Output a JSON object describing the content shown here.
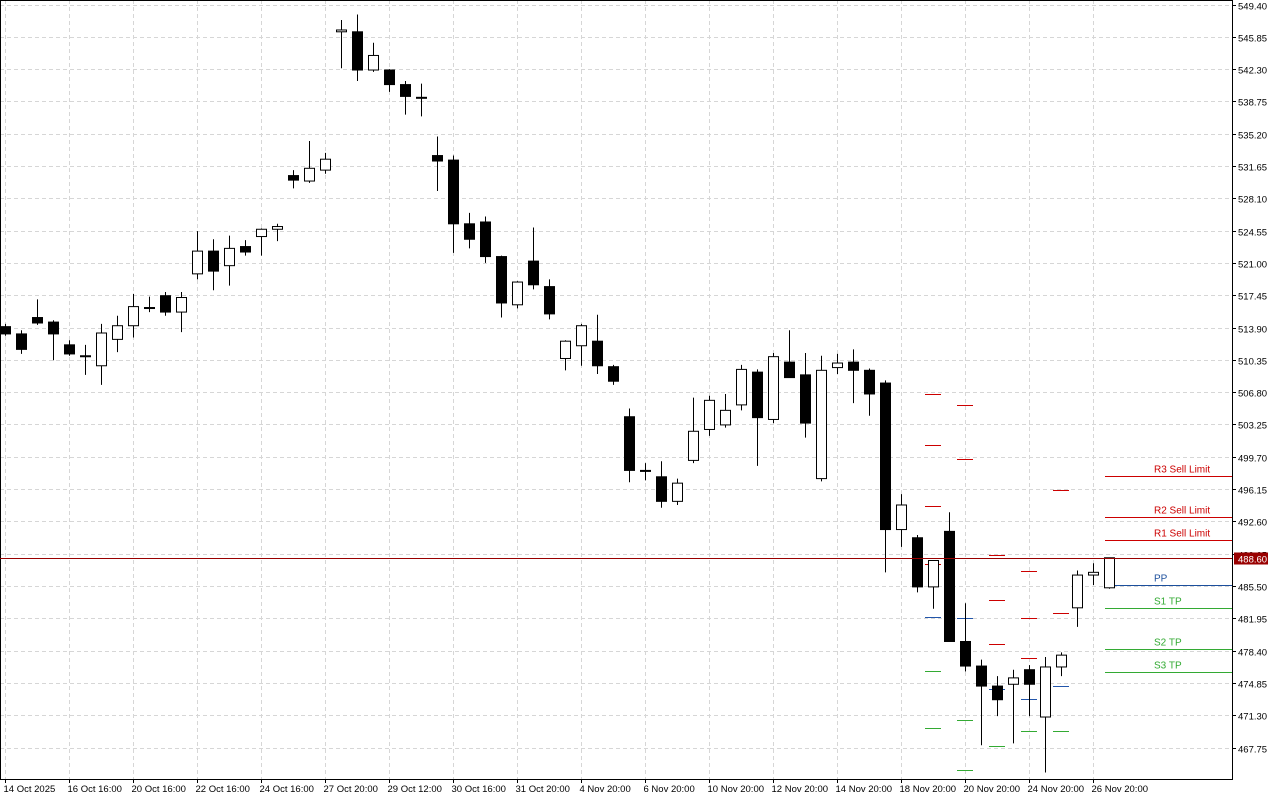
{
  "chart_data": {
    "type": "candlestick",
    "ylim": [
      464.0,
      549.4
    ],
    "grid": true,
    "y_ticks": [
      "549.40",
      "545.85",
      "542.30",
      "538.75",
      "535.20",
      "531.65",
      "528.10",
      "524.55",
      "521.00",
      "517.45",
      "513.90",
      "510.35",
      "506.80",
      "503.25",
      "499.70",
      "496.15",
      "492.60",
      "489.05",
      "485.50",
      "481.95",
      "478.40",
      "474.85",
      "471.30",
      "467.75"
    ],
    "x_labels": [
      {
        "index": 0,
        "label": "14 Oct 2025"
      },
      {
        "index": 4,
        "label": "16 Oct 16:00"
      },
      {
        "index": 8,
        "label": "20 Oct 16:00"
      },
      {
        "index": 12,
        "label": "22 Oct 16:00"
      },
      {
        "index": 16,
        "label": "24 Oct 16:00"
      },
      {
        "index": 20,
        "label": "27 Oct 20:00"
      },
      {
        "index": 24,
        "label": "29 Oct 12:00"
      },
      {
        "index": 28,
        "label": "30 Oct 16:00"
      },
      {
        "index": 32,
        "label": "31 Oct 20:00"
      },
      {
        "index": 36,
        "label": "4 Nov 20:00"
      },
      {
        "index": 40,
        "label": "6 Nov 20:00"
      },
      {
        "index": 44,
        "label": "10 Nov 20:00"
      },
      {
        "index": 48,
        "label": "12 Nov 20:00"
      },
      {
        "index": 52,
        "label": "14 Nov 20:00"
      },
      {
        "index": 56,
        "label": "18 Nov 20:00"
      },
      {
        "index": 60,
        "label": "20 Nov 20:00"
      },
      {
        "index": 64,
        "label": "24 Nov 20:00"
      },
      {
        "index": 68,
        "label": "26 Nov 20:00"
      }
    ],
    "candles": [
      {
        "o": 514.0,
        "h": 514.3,
        "l": 513.0,
        "c": 513.2
      },
      {
        "o": 513.2,
        "h": 513.6,
        "l": 511.0,
        "c": 511.5
      },
      {
        "o": 515.0,
        "h": 517.0,
        "l": 514.2,
        "c": 514.4
      },
      {
        "o": 514.5,
        "h": 514.7,
        "l": 510.3,
        "c": 513.2
      },
      {
        "o": 512.0,
        "h": 512.5,
        "l": 510.8,
        "c": 511.0
      },
      {
        "o": 510.8,
        "h": 512.0,
        "l": 508.7,
        "c": 510.7
      },
      {
        "o": 509.7,
        "h": 514.3,
        "l": 507.6,
        "c": 513.3
      },
      {
        "o": 512.6,
        "h": 515.2,
        "l": 511.2,
        "c": 514.1
      },
      {
        "o": 514.1,
        "h": 517.6,
        "l": 512.8,
        "c": 516.2
      },
      {
        "o": 516.0,
        "h": 517.3,
        "l": 515.6,
        "c": 516.1
      },
      {
        "o": 517.4,
        "h": 517.8,
        "l": 515.2,
        "c": 515.6
      },
      {
        "o": 515.6,
        "h": 517.8,
        "l": 513.4,
        "c": 517.2
      },
      {
        "o": 519.8,
        "h": 524.5,
        "l": 519.2,
        "c": 522.3
      },
      {
        "o": 522.3,
        "h": 523.6,
        "l": 518.0,
        "c": 520.1
      },
      {
        "o": 520.7,
        "h": 524.0,
        "l": 518.5,
        "c": 522.6
      },
      {
        "o": 522.8,
        "h": 523.5,
        "l": 521.8,
        "c": 522.2
      },
      {
        "o": 523.9,
        "h": 524.8,
        "l": 521.8,
        "c": 524.7
      },
      {
        "o": 524.7,
        "h": 525.3,
        "l": 523.4,
        "c": 525.0
      },
      {
        "o": 530.6,
        "h": 531.2,
        "l": 529.2,
        "c": 530.1
      },
      {
        "o": 530.0,
        "h": 534.4,
        "l": 529.8,
        "c": 531.4
      },
      {
        "o": 531.2,
        "h": 533.1,
        "l": 530.8,
        "c": 532.4
      },
      {
        "o": 546.4,
        "h": 547.7,
        "l": 542.4,
        "c": 546.6
      },
      {
        "o": 546.4,
        "h": 548.3,
        "l": 541.0,
        "c": 542.2
      },
      {
        "o": 542.2,
        "h": 545.2,
        "l": 542.0,
        "c": 543.8
      },
      {
        "o": 542.2,
        "h": 542.3,
        "l": 539.8,
        "c": 540.6
      },
      {
        "o": 540.6,
        "h": 541.0,
        "l": 537.3,
        "c": 539.3
      },
      {
        "o": 539.2,
        "h": 540.7,
        "l": 537.1,
        "c": 539.2
      },
      {
        "o": 532.8,
        "h": 534.9,
        "l": 528.9,
        "c": 532.2
      },
      {
        "o": 532.3,
        "h": 532.8,
        "l": 522.1,
        "c": 525.3
      },
      {
        "o": 525.3,
        "h": 526.5,
        "l": 522.6,
        "c": 523.6
      },
      {
        "o": 525.5,
        "h": 526.1,
        "l": 521.0,
        "c": 521.7
      },
      {
        "o": 521.7,
        "h": 521.8,
        "l": 515.0,
        "c": 516.6
      },
      {
        "o": 516.4,
        "h": 519.0,
        "l": 516.0,
        "c": 518.9
      },
      {
        "o": 521.2,
        "h": 524.9,
        "l": 518.1,
        "c": 518.6
      },
      {
        "o": 518.4,
        "h": 519.2,
        "l": 514.8,
        "c": 515.4
      },
      {
        "o": 510.5,
        "h": 512.5,
        "l": 509.2,
        "c": 512.4
      },
      {
        "o": 511.9,
        "h": 514.3,
        "l": 509.7,
        "c": 514.1
      },
      {
        "o": 512.4,
        "h": 515.3,
        "l": 508.8,
        "c": 509.7
      },
      {
        "o": 509.6,
        "h": 509.8,
        "l": 507.6,
        "c": 508.0
      },
      {
        "o": 504.1,
        "h": 505.0,
        "l": 496.9,
        "c": 498.2
      },
      {
        "o": 498.2,
        "h": 499.0,
        "l": 497.1,
        "c": 498.1
      },
      {
        "o": 497.5,
        "h": 499.2,
        "l": 494.1,
        "c": 494.8
      },
      {
        "o": 494.8,
        "h": 497.3,
        "l": 494.4,
        "c": 496.8
      },
      {
        "o": 499.3,
        "h": 506.2,
        "l": 499.0,
        "c": 502.5
      },
      {
        "o": 502.7,
        "h": 506.4,
        "l": 502.0,
        "c": 505.9
      },
      {
        "o": 503.2,
        "h": 506.6,
        "l": 502.9,
        "c": 504.8
      },
      {
        "o": 505.4,
        "h": 509.8,
        "l": 504.8,
        "c": 509.3
      },
      {
        "o": 509.0,
        "h": 509.3,
        "l": 498.7,
        "c": 504.0
      },
      {
        "o": 503.8,
        "h": 511.1,
        "l": 503.4,
        "c": 510.7
      },
      {
        "o": 510.1,
        "h": 513.6,
        "l": 508.4,
        "c": 508.4
      },
      {
        "o": 508.7,
        "h": 511.1,
        "l": 501.8,
        "c": 503.4
      },
      {
        "o": 497.3,
        "h": 510.8,
        "l": 497.0,
        "c": 509.2
      },
      {
        "o": 509.5,
        "h": 511.0,
        "l": 508.8,
        "c": 510.0
      },
      {
        "o": 510.1,
        "h": 511.5,
        "l": 505.6,
        "c": 509.2
      },
      {
        "o": 509.2,
        "h": 509.4,
        "l": 504.2,
        "c": 506.6
      },
      {
        "o": 507.8,
        "h": 508.1,
        "l": 487.0,
        "c": 491.7
      },
      {
        "o": 491.7,
        "h": 495.6,
        "l": 489.8,
        "c": 494.4
      },
      {
        "o": 490.8,
        "h": 491.1,
        "l": 484.8,
        "c": 485.4
      },
      {
        "o": 485.4,
        "h": 488.0,
        "l": 483.0,
        "c": 488.3
      },
      {
        "o": 491.5,
        "h": 493.6,
        "l": 480.0,
        "c": 479.4
      },
      {
        "o": 479.4,
        "h": 483.6,
        "l": 476.1,
        "c": 476.7
      },
      {
        "o": 476.7,
        "h": 477.4,
        "l": 468.0,
        "c": 474.5
      },
      {
        "o": 474.5,
        "h": 475.6,
        "l": 471.2,
        "c": 473.0
      },
      {
        "o": 474.7,
        "h": 476.3,
        "l": 468.2,
        "c": 475.4
      },
      {
        "o": 476.3,
        "h": 476.8,
        "l": 471.2,
        "c": 474.7
      },
      {
        "o": 471.1,
        "h": 477.7,
        "l": 465.0,
        "c": 476.6
      },
      {
        "o": 476.6,
        "h": 478.2,
        "l": 475.6,
        "c": 477.9
      },
      {
        "o": 483.1,
        "h": 487.2,
        "l": 481.0,
        "c": 486.7
      },
      {
        "o": 486.7,
        "h": 488.0,
        "l": 485.6,
        "c": 487.0
      },
      {
        "o": 485.3,
        "h": 488.6,
        "l": 485.2,
        "c": 488.6
      }
    ],
    "pivot_marks": [
      {
        "index": 58,
        "color": "#cc0000",
        "values": [
          506.6,
          501.0,
          494.3,
          487.9
        ]
      },
      {
        "index": 58,
        "color": "#2255aa",
        "values": [
          482.1
        ]
      },
      {
        "index": 58,
        "color": "#33aa33",
        "values": [
          476.2,
          469.9
        ]
      },
      {
        "index": 60,
        "color": "#cc0000",
        "values": [
          505.4,
          499.4
        ]
      },
      {
        "index": 60,
        "color": "#2255aa",
        "values": [
          482.0
        ]
      },
      {
        "index": 60,
        "color": "#33aa33",
        "values": [
          470.8,
          465.3
        ]
      },
      {
        "index": 62,
        "color": "#cc0000",
        "values": [
          488.9,
          484.0,
          479.1
        ]
      },
      {
        "index": 62,
        "color": "#2255aa",
        "values": [
          474.2
        ]
      },
      {
        "index": 62,
        "color": "#33aa33",
        "values": [
          467.9
        ]
      },
      {
        "index": 64,
        "color": "#cc0000",
        "values": [
          487.1,
          482.0,
          477.6
        ]
      },
      {
        "index": 64,
        "color": "#2255aa",
        "values": [
          473.1
        ]
      },
      {
        "index": 64,
        "color": "#33aa33",
        "values": [
          469.6
        ]
      },
      {
        "index": 66,
        "color": "#cc0000",
        "values": [
          496.1,
          482.5
        ]
      },
      {
        "index": 66,
        "color": "#2255aa",
        "values": [
          474.5
        ]
      },
      {
        "index": 66,
        "color": "#33aa33",
        "values": [
          469.6
        ]
      }
    ],
    "levels": [
      {
        "label": "R3 Sell Limit",
        "value": 497.6,
        "color": "#cc0000"
      },
      {
        "label": "R2 Sell Limit",
        "value": 493.1,
        "color": "#cc0000"
      },
      {
        "label": "R1 Sell Limit",
        "value": 490.5,
        "color": "#cc0000"
      },
      {
        "label": "PP",
        "value": 485.6,
        "color": "#1c4f9c"
      },
      {
        "label": "S1 TP",
        "value": 483.1,
        "color": "#33aa33"
      },
      {
        "label": "S2 TP",
        "value": 478.6,
        "color": "#33aa33"
      },
      {
        "label": "S3 TP",
        "value": 476.0,
        "color": "#33aa33"
      }
    ],
    "current_price": {
      "value": 488.6,
      "label": "488.60",
      "color": "#990000"
    }
  }
}
